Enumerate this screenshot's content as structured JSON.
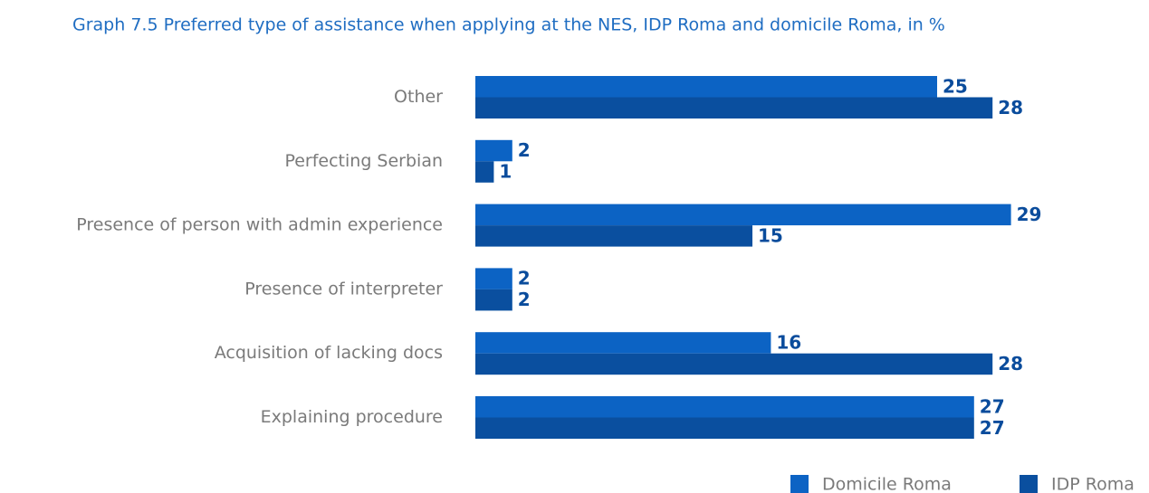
{
  "chart_data": {
    "type": "hbar",
    "title": "Graph 7.5 Preferred type of assistance when applying at the NES, IDP Roma and domicile Roma, in %",
    "categories": [
      "Other",
      "Perfecting Serbian",
      "Presence of person with admin experience",
      "Presence of interpreter",
      "Acquisition of lacking docs",
      "Explaining procedure"
    ],
    "series": [
      {
        "name": "Domicile Roma",
        "color": "#0c63c4",
        "values": [
          25,
          2,
          29,
          2,
          16,
          27
        ]
      },
      {
        "name": "IDP Roma",
        "color": "#0a4f9f",
        "values": [
          28,
          1,
          15,
          2,
          28,
          27
        ]
      }
    ],
    "xlim": [
      0,
      30
    ],
    "legend": "bottom-right"
  }
}
